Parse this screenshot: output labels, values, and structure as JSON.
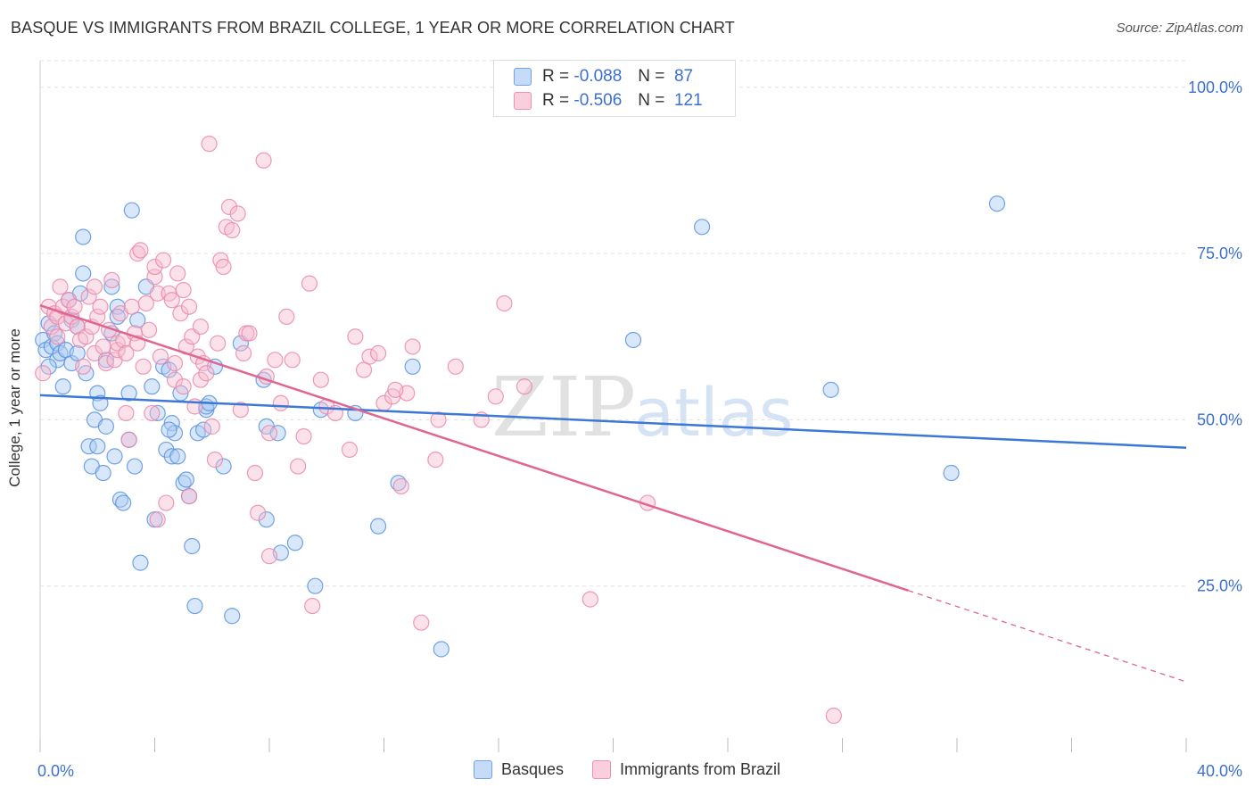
{
  "title": "BASQUE VS IMMIGRANTS FROM BRAZIL COLLEGE, 1 YEAR OR MORE CORRELATION CHART",
  "source": "Source: ZipAtlas.com",
  "watermark": {
    "zip": "ZIP",
    "atlas": "atlas"
  },
  "legend": {
    "r_label": "R =",
    "n_label": "N =",
    "rows": [
      {
        "r": "-0.088",
        "n": "87",
        "color": "#6fa3e8"
      },
      {
        "r": "-0.506",
        "n": "121",
        "color": "#f08fb0"
      }
    ]
  },
  "bottom_legend": [
    "Basques",
    "Immigrants from Brazil"
  ],
  "chart_data": {
    "type": "scatter",
    "title": "BASQUE VS IMMIGRANTS FROM BRAZIL COLLEGE, 1 YEAR OR MORE CORRELATION CHART",
    "xlabel": "",
    "ylabel": "College, 1 year or more",
    "xlim": [
      0,
      40
    ],
    "ylim": [
      0,
      104
    ],
    "x_tick_labels": [
      "0.0%",
      "40.0%"
    ],
    "y_ticks": [
      25,
      50,
      75,
      100
    ],
    "y_tick_labels": [
      "25.0%",
      "50.0%",
      "75.0%",
      "100.0%"
    ],
    "grid": true,
    "legend_position": "top-center",
    "colors": {
      "basques": "#3b78d8",
      "brazil": "#e0668f",
      "axis_text": "#3b6fd4"
    },
    "series": [
      {
        "name": "Basques",
        "r": -0.088,
        "n": 87,
        "trend": {
          "x": [
            0,
            40
          ],
          "y": [
            53.7,
            45.8
          ]
        },
        "points": [
          [
            0.1,
            62
          ],
          [
            0.2,
            60.5
          ],
          [
            0.3,
            64.5
          ],
          [
            0.4,
            61
          ],
          [
            0.5,
            63
          ],
          [
            0.6,
            61.5
          ],
          [
            0.6,
            59
          ],
          [
            0.7,
            60
          ],
          [
            0.8,
            55
          ],
          [
            0.9,
            60.5
          ],
          [
            1.0,
            68
          ],
          [
            1.1,
            65
          ],
          [
            1.1,
            58.5
          ],
          [
            1.3,
            60
          ],
          [
            1.4,
            69
          ],
          [
            1.5,
            77.5
          ],
          [
            1.5,
            72
          ],
          [
            1.6,
            57
          ],
          [
            1.7,
            46
          ],
          [
            1.8,
            43
          ],
          [
            1.9,
            50
          ],
          [
            2.0,
            54
          ],
          [
            2.0,
            46
          ],
          [
            2.1,
            52.5
          ],
          [
            2.2,
            42
          ],
          [
            2.3,
            49
          ],
          [
            2.3,
            59
          ],
          [
            2.5,
            63
          ],
          [
            2.5,
            70
          ],
          [
            2.6,
            44.5
          ],
          [
            2.7,
            67
          ],
          [
            2.7,
            65.5
          ],
          [
            2.8,
            38
          ],
          [
            2.9,
            37.5
          ],
          [
            3.1,
            47
          ],
          [
            3.1,
            54
          ],
          [
            3.2,
            81.5
          ],
          [
            3.3,
            43
          ],
          [
            3.4,
            65
          ],
          [
            3.5,
            28.5
          ],
          [
            3.7,
            70
          ],
          [
            3.9,
            55
          ],
          [
            4.0,
            35
          ],
          [
            4.1,
            51
          ],
          [
            4.3,
            58
          ],
          [
            4.4,
            45.5
          ],
          [
            4.5,
            57.5
          ],
          [
            4.6,
            49.5
          ],
          [
            4.6,
            44.5
          ],
          [
            4.7,
            48
          ],
          [
            4.8,
            44.5
          ],
          [
            4.9,
            54
          ],
          [
            5.0,
            40.5
          ],
          [
            5.1,
            41
          ],
          [
            5.2,
            38.5
          ],
          [
            5.3,
            31
          ],
          [
            5.4,
            22
          ],
          [
            5.5,
            48
          ],
          [
            5.7,
            48.5
          ],
          [
            5.8,
            51.5
          ],
          [
            5.8,
            52
          ],
          [
            5.9,
            52.5
          ],
          [
            6.1,
            58
          ],
          [
            6.4,
            43
          ],
          [
            6.7,
            20.5
          ],
          [
            7.0,
            61.5
          ],
          [
            7.8,
            56
          ],
          [
            7.9,
            49
          ],
          [
            7.9,
            35
          ],
          [
            8.3,
            48
          ],
          [
            8.4,
            30
          ],
          [
            8.9,
            31.5
          ],
          [
            9.6,
            25
          ],
          [
            9.8,
            51.5
          ],
          [
            11.0,
            51
          ],
          [
            11.8,
            34
          ],
          [
            12.5,
            40.5
          ],
          [
            13.0,
            58
          ],
          [
            14.0,
            15.5
          ],
          [
            20.7,
            62
          ],
          [
            23.1,
            79
          ],
          [
            27.6,
            54.5
          ],
          [
            31.8,
            42
          ],
          [
            33.4,
            82.5
          ],
          [
            0.3,
            58
          ],
          [
            1.3,
            64
          ],
          [
            4.5,
            48.5
          ]
        ]
      },
      {
        "name": "Immigrants from Brazil",
        "r": -0.506,
        "n": 121,
        "trend": {
          "x": [
            0,
            40
          ],
          "y": [
            67.2,
            10.6
          ],
          "solid_until_x": 30.3
        },
        "points": [
          [
            0.1,
            57
          ],
          [
            0.3,
            67
          ],
          [
            0.4,
            64
          ],
          [
            0.5,
            66
          ],
          [
            0.6,
            62.5
          ],
          [
            0.6,
            65.5
          ],
          [
            0.7,
            70
          ],
          [
            0.8,
            67
          ],
          [
            0.9,
            64.5
          ],
          [
            1.0,
            68
          ],
          [
            1.1,
            65.5
          ],
          [
            1.2,
            67
          ],
          [
            1.3,
            64
          ],
          [
            1.4,
            62
          ],
          [
            1.5,
            58
          ],
          [
            1.6,
            62.5
          ],
          [
            1.7,
            68.5
          ],
          [
            1.8,
            64
          ],
          [
            1.9,
            70
          ],
          [
            1.9,
            60
          ],
          [
            2.0,
            65.5
          ],
          [
            2.1,
            67
          ],
          [
            2.2,
            61
          ],
          [
            2.3,
            58.5
          ],
          [
            2.4,
            63.5
          ],
          [
            2.5,
            71
          ],
          [
            2.6,
            59
          ],
          [
            2.7,
            60.5
          ],
          [
            2.7,
            61.5
          ],
          [
            2.8,
            66
          ],
          [
            2.9,
            62
          ],
          [
            3.0,
            60
          ],
          [
            3.1,
            47
          ],
          [
            3.2,
            67
          ],
          [
            3.3,
            63
          ],
          [
            3.4,
            75
          ],
          [
            3.4,
            61.5
          ],
          [
            3.5,
            75.5
          ],
          [
            3.6,
            58
          ],
          [
            3.7,
            67.5
          ],
          [
            3.8,
            63.5
          ],
          [
            3.9,
            51
          ],
          [
            4.0,
            71.5
          ],
          [
            4.0,
            73
          ],
          [
            4.1,
            35
          ],
          [
            4.1,
            69
          ],
          [
            4.2,
            59.5
          ],
          [
            4.3,
            74
          ],
          [
            4.4,
            37.5
          ],
          [
            4.5,
            69
          ],
          [
            4.6,
            68
          ],
          [
            4.7,
            56
          ],
          [
            4.7,
            58.5
          ],
          [
            4.8,
            72
          ],
          [
            4.9,
            66
          ],
          [
            5.0,
            69.5
          ],
          [
            5.0,
            55
          ],
          [
            5.1,
            61
          ],
          [
            5.2,
            38.5
          ],
          [
            5.2,
            67
          ],
          [
            5.3,
            62.5
          ],
          [
            5.4,
            52
          ],
          [
            5.5,
            59.5
          ],
          [
            5.6,
            64
          ],
          [
            5.6,
            56
          ],
          [
            5.7,
            58.5
          ],
          [
            5.8,
            57
          ],
          [
            5.9,
            91.5
          ],
          [
            6.0,
            49
          ],
          [
            6.1,
            44
          ],
          [
            6.2,
            61.5
          ],
          [
            6.3,
            74
          ],
          [
            6.4,
            73
          ],
          [
            6.5,
            79
          ],
          [
            6.6,
            82
          ],
          [
            6.7,
            78.5
          ],
          [
            6.9,
            81
          ],
          [
            7.0,
            51.5
          ],
          [
            7.1,
            60
          ],
          [
            7.2,
            63
          ],
          [
            7.3,
            63
          ],
          [
            7.5,
            42
          ],
          [
            7.6,
            36
          ],
          [
            7.8,
            89
          ],
          [
            7.9,
            56.5
          ],
          [
            8.0,
            48
          ],
          [
            8.0,
            29.5
          ],
          [
            8.2,
            59
          ],
          [
            8.4,
            52.5
          ],
          [
            8.6,
            65.5
          ],
          [
            8.8,
            59
          ],
          [
            9.0,
            43
          ],
          [
            9.2,
            47.5
          ],
          [
            9.4,
            70.5
          ],
          [
            9.5,
            22
          ],
          [
            9.8,
            56
          ],
          [
            10.0,
            52
          ],
          [
            10.3,
            51
          ],
          [
            10.8,
            45.5
          ],
          [
            11.0,
            62.5
          ],
          [
            11.3,
            57.5
          ],
          [
            11.5,
            59.5
          ],
          [
            11.8,
            60
          ],
          [
            12.0,
            52.5
          ],
          [
            12.3,
            53.5
          ],
          [
            12.6,
            40
          ],
          [
            12.8,
            54
          ],
          [
            13.0,
            61
          ],
          [
            13.3,
            19.5
          ],
          [
            13.8,
            44
          ],
          [
            13.9,
            50
          ],
          [
            14.5,
            58
          ],
          [
            15.4,
            50
          ],
          [
            15.9,
            53.5
          ],
          [
            16.2,
            67.5
          ],
          [
            16.9,
            55
          ],
          [
            19.2,
            23
          ],
          [
            21.2,
            37.5
          ],
          [
            27.7,
            5.5
          ],
          [
            12.4,
            54.5
          ],
          [
            3.0,
            51
          ]
        ]
      }
    ]
  }
}
